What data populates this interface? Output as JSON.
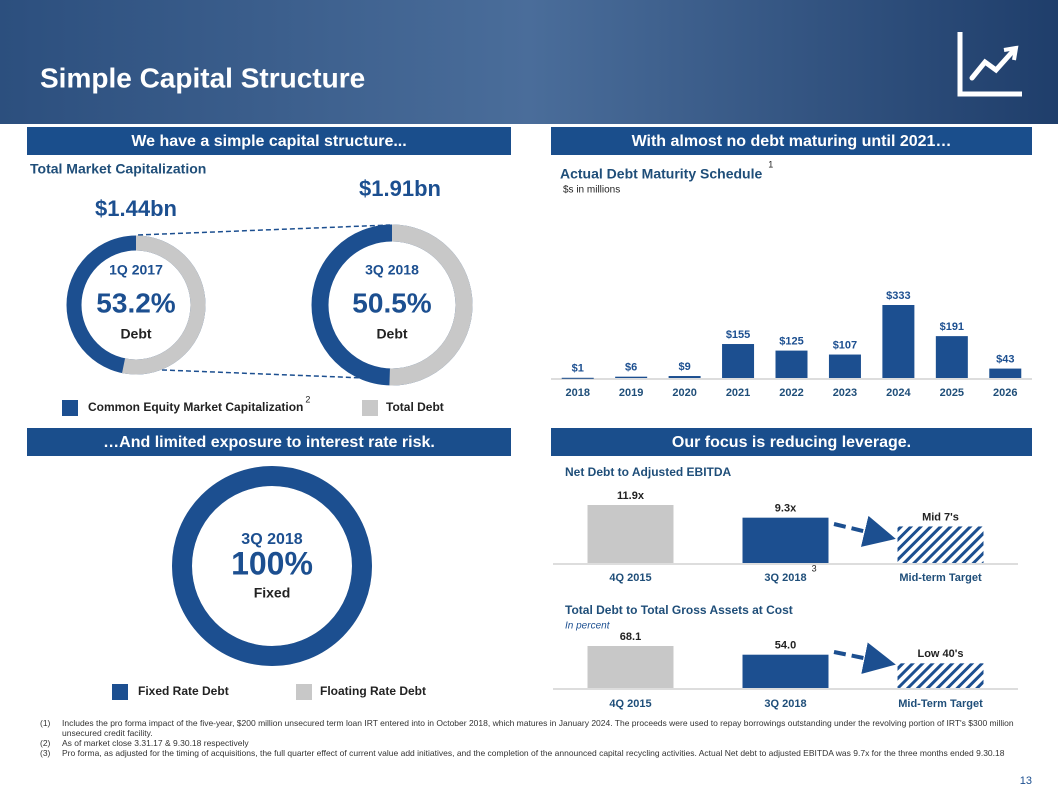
{
  "title": "Simple Capital Structure",
  "page_number": "13",
  "footnotes": [
    {
      "marker": "(1)",
      "text": "Includes the pro forma impact of the five-year, $200 million unsecured term loan IRT entered into in October 2018, which matures in January 2024. The proceeds were used to repay borrowings outstanding under the revolving portion of IRT's $300 million unsecured credit facility."
    },
    {
      "marker": "(2)",
      "text": "As of market close 3.31.17 & 9.30.18 respectively"
    },
    {
      "marker": "(3)",
      "text": "Pro forma, as adjusted for the timing of acquisitions, the full quarter effect of current value add initiatives, and the completion of the announced capital recycling activities. Actual Net debt to adjusted EBITDA was 9.7x for the three months ended 9.30.18"
    }
  ],
  "chart_data": [
    {
      "type": "donut",
      "heading": "We have a simple capital structure...",
      "title": "Total Market Capitalization",
      "series": [
        {
          "name": "Common Equity Market Capitalization",
          "color": "#1c4f90",
          "note": "2"
        },
        {
          "name": "Total Debt",
          "color": "#c8c8c8"
        }
      ],
      "donuts": [
        {
          "total": "$1.44bn",
          "period": "1Q 2017",
          "value": 53.2,
          "value_label": "53.2%",
          "label": "Debt",
          "series_index": 1
        },
        {
          "total": "$1.91bn",
          "period": "3Q 2018",
          "value": 50.5,
          "value_label": "50.5%",
          "label": "Debt",
          "series_index": 1
        }
      ]
    },
    {
      "type": "bar",
      "heading": "With almost no debt maturing until 2021…",
      "title": "Actual Debt Maturity Schedule",
      "title_note": "1",
      "subtitle": "$s in millions",
      "categories": [
        "2018",
        "2019",
        "2020",
        "2021",
        "2022",
        "2023",
        "2024",
        "2025",
        "2026"
      ],
      "values": [
        1,
        6,
        9,
        155,
        125,
        107,
        333,
        191,
        43
      ],
      "value_labels": [
        "$1",
        "$6",
        "$9",
        "$155",
        "$125",
        "$107",
        "$333",
        "$191",
        "$43"
      ],
      "color": "#1c4f90"
    },
    {
      "type": "donut",
      "heading": "…And limited exposure to interest rate risk.",
      "series": [
        {
          "name": "Fixed Rate Debt",
          "color": "#1c4f90"
        },
        {
          "name": "Floating Rate Debt",
          "color": "#c8c8c8"
        }
      ],
      "donuts": [
        {
          "period": "3Q 2018",
          "value": 100,
          "value_label": "100%",
          "label": "Fixed",
          "series_index": 0
        }
      ]
    },
    {
      "type": "bar",
      "heading": "Our focus is reducing leverage.",
      "title": "Net Debt to Adjusted EBITDA",
      "categories": [
        "4Q 2015",
        "3Q 2018",
        "Mid-term Target"
      ],
      "category_notes": [
        null,
        "3",
        null
      ],
      "values": [
        11.9,
        9.3,
        7.5
      ],
      "value_labels": [
        "11.9x",
        "9.3x",
        "Mid 7's"
      ],
      "colors": [
        "#c8c8c8",
        "#1c4f90",
        "#1c4f90"
      ],
      "hatched": [
        false,
        false,
        true
      ]
    },
    {
      "type": "bar",
      "title": "Total Debt to Total Gross Assets at Cost",
      "subtitle": "In percent",
      "categories": [
        "4Q 2015",
        "3Q 2018",
        "Mid-Term Target"
      ],
      "values": [
        68.1,
        54.0,
        40
      ],
      "value_labels": [
        "68.1",
        "54.0",
        "Low 40's"
      ],
      "colors": [
        "#c8c8c8",
        "#1c4f90",
        "#1c4f90"
      ],
      "hatched": [
        false,
        false,
        true
      ]
    }
  ]
}
